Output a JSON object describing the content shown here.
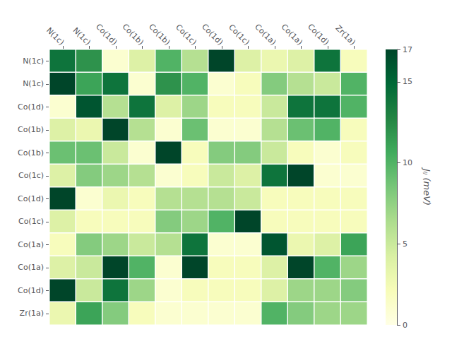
{
  "chart_data": {
    "type": "heatmap",
    "categories": [
      "N(1c)",
      "N(1c)",
      "Co(1d)",
      "Co(1b)",
      "Co(1b)",
      "Co(1c)",
      "Co(1d)",
      "Co(1c)",
      "Co(1a)",
      "Co(1a)",
      "Co(1d)",
      "Zr(1a)"
    ],
    "y_categories": [
      "N(1c)",
      "N(1c)",
      "Co(1d)",
      "Co(1b)",
      "Co(1b)",
      "Co(1c)",
      "Co(1d)",
      "Co(1c)",
      "Co(1a)",
      "Co(1a)",
      "Co(1d)",
      "Zr(1a)"
    ],
    "values": [
      [
        14,
        12,
        1,
        4,
        10,
        6,
        17,
        4,
        3,
        4,
        14,
        2
      ],
      [
        17,
        11,
        14,
        1,
        12,
        10,
        1,
        2,
        8,
        6,
        5,
        10
      ],
      [
        1,
        16,
        6,
        14,
        4,
        7,
        2,
        2,
        5,
        14,
        14,
        10
      ],
      [
        4,
        3,
        17,
        6,
        1,
        9,
        1,
        1,
        6,
        9,
        10,
        2
      ],
      [
        9,
        9,
        5,
        1,
        17,
        2,
        8,
        8,
        5,
        2,
        1,
        2
      ],
      [
        4,
        8,
        7,
        6,
        1,
        2,
        5,
        4,
        14,
        17,
        1,
        1
      ],
      [
        17,
        1,
        3,
        2,
        6,
        6,
        6,
        5,
        2,
        2,
        2,
        2
      ],
      [
        4,
        2,
        2,
        2,
        8,
        7,
        10,
        17,
        2,
        2,
        2,
        2
      ],
      [
        2,
        8,
        7,
        5,
        6,
        14,
        1,
        1,
        16,
        3,
        4,
        11
      ],
      [
        4,
        5,
        17,
        10,
        1,
        17,
        2,
        2,
        4,
        17,
        10,
        7
      ],
      [
        17,
        5,
        14,
        7,
        1,
        2,
        2,
        2,
        4,
        7,
        7,
        8
      ],
      [
        3,
        11,
        8,
        2,
        1,
        1,
        1,
        1,
        10,
        8,
        7,
        7
      ]
    ],
    "colorbar": {
      "label": "Jᵢⱼ (meV)",
      "range": [
        0,
        17
      ],
      "ticks": [
        0,
        5,
        10,
        15
      ]
    },
    "grid": false
  }
}
